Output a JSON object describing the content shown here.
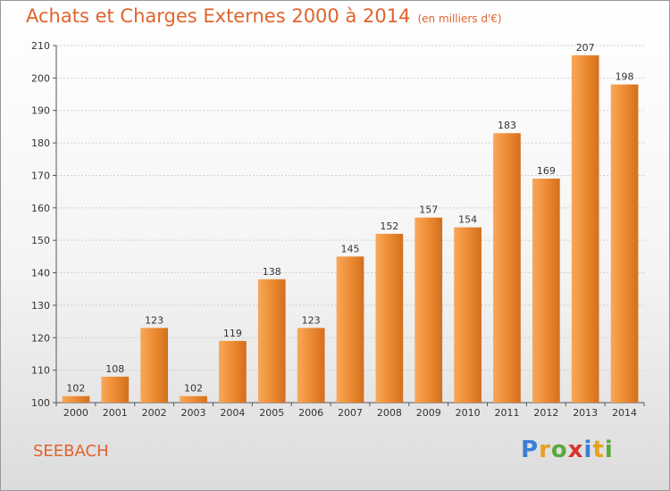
{
  "header": {
    "title": "Achats et Charges Externes 2000 à 2014",
    "unit": "(en milliers d'€)"
  },
  "footer": {
    "place": "SEEBACH",
    "logo": [
      "P",
      "r",
      "o",
      "x",
      "i",
      "t",
      "i"
    ],
    "logo_colors": [
      "#3b7fd4",
      "#e8a020",
      "#5aa83a",
      "#d8342c",
      "#3b7fd4",
      "#e8a020",
      "#5aa83a"
    ]
  },
  "colors": {
    "bar": "#ef8e36",
    "bar_light": "#f6a85a",
    "bar_dark": "#d46f1c",
    "title": "#e0632c",
    "grid": "#d0d0d0"
  },
  "chart_data": {
    "type": "bar",
    "title": "Achats et Charges Externes 2000 à 2014",
    "subtitle": "(en milliers d'€)",
    "categories": [
      "2000",
      "2001",
      "2002",
      "2003",
      "2004",
      "2005",
      "2006",
      "2007",
      "2008",
      "2009",
      "2010",
      "2011",
      "2012",
      "2013",
      "2014"
    ],
    "values": [
      102,
      108,
      123,
      102,
      119,
      138,
      123,
      145,
      152,
      157,
      154,
      183,
      169,
      207,
      198
    ],
    "ylim": [
      100,
      210
    ],
    "yticks": [
      100,
      110,
      120,
      130,
      140,
      150,
      160,
      170,
      180,
      190,
      200,
      210
    ],
    "grid": true,
    "legend": "none"
  }
}
